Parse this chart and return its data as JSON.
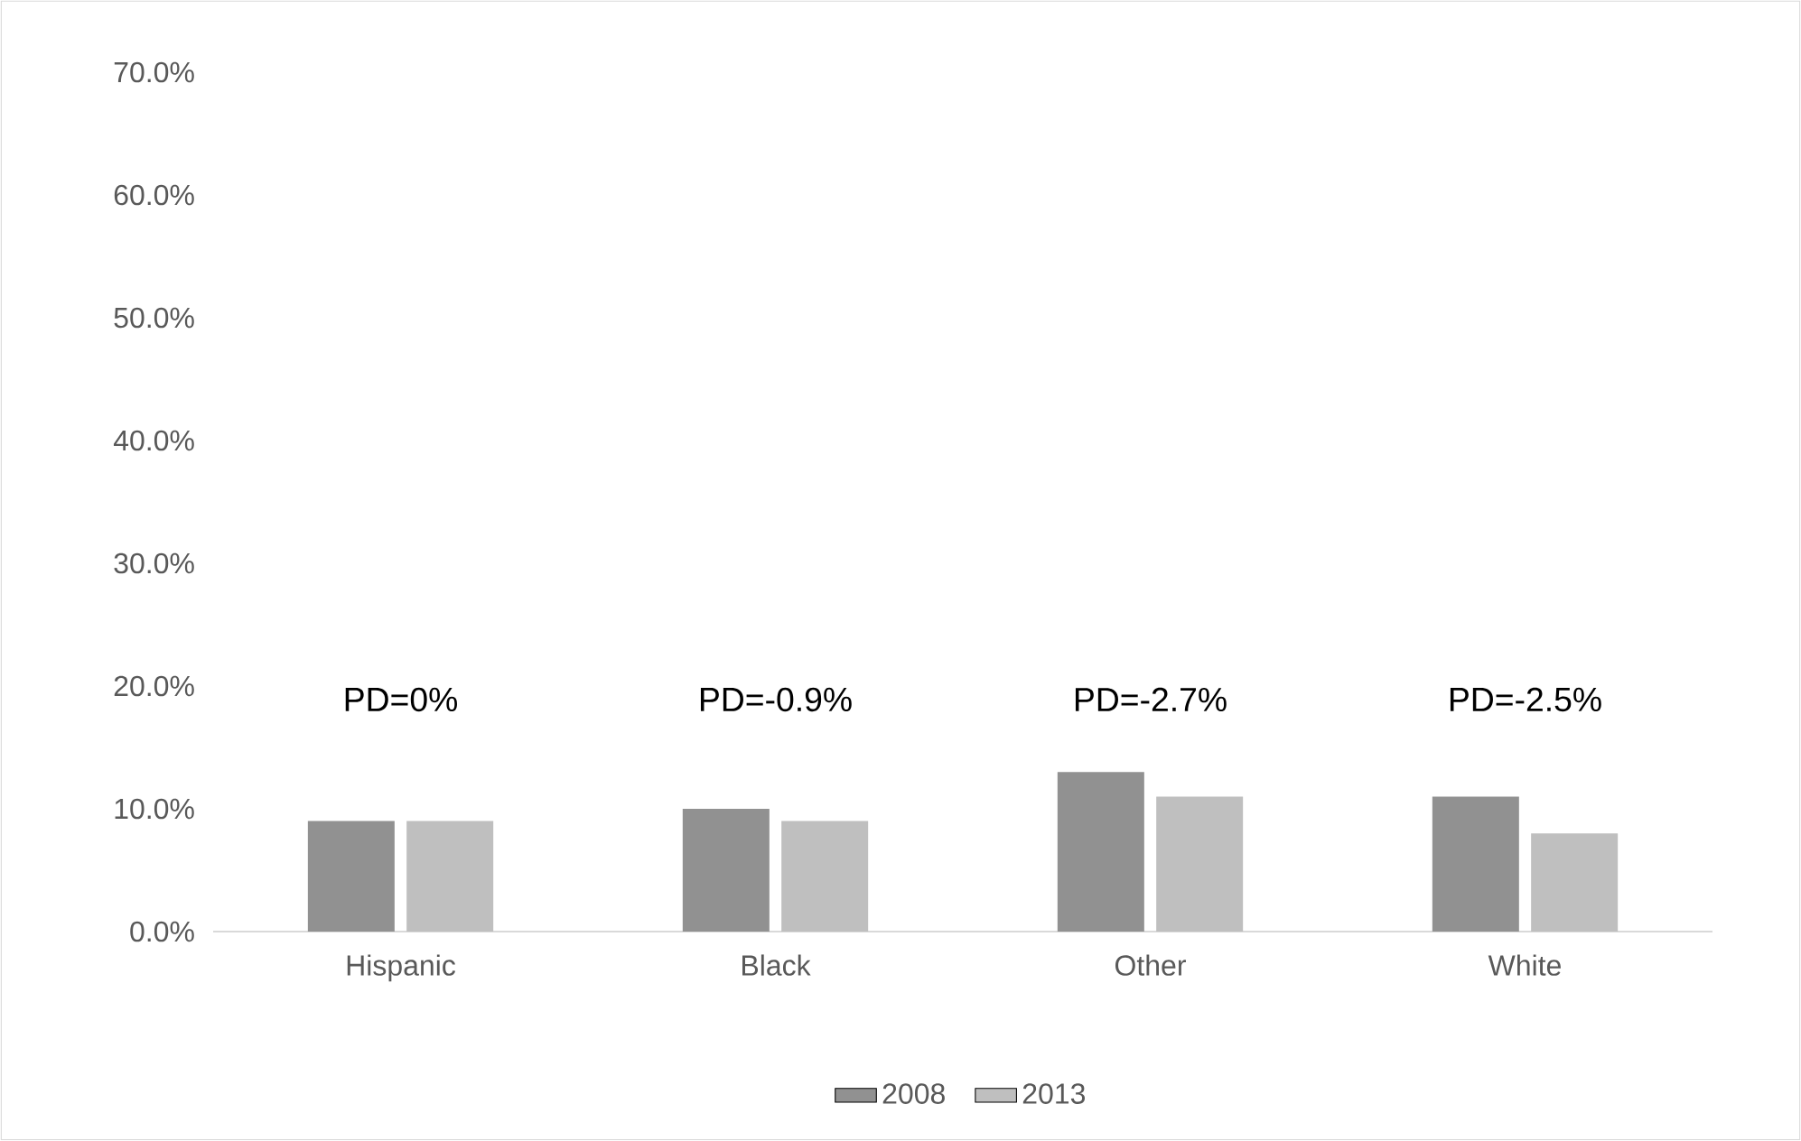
{
  "chart_data": {
    "type": "bar",
    "categories": [
      "Hispanic",
      "Black",
      "Other",
      "White"
    ],
    "series": [
      {
        "name": "2008",
        "color": "#919191",
        "values": [
          9,
          10,
          13,
          11
        ]
      },
      {
        "name": "2013",
        "color": "#bfbfbf",
        "values": [
          9,
          9,
          11,
          8
        ]
      }
    ],
    "ylim": [
      0,
      70
    ],
    "yticks": [
      {
        "value": 0,
        "label": "0.0%"
      },
      {
        "value": 10,
        "label": "10.0%"
      },
      {
        "value": 20,
        "label": "20.0%"
      },
      {
        "value": 30,
        "label": "30.0%"
      },
      {
        "value": 40,
        "label": "40.0%"
      },
      {
        "value": 50,
        "label": "50.0%"
      },
      {
        "value": 60,
        "label": "60.0%"
      },
      {
        "value": 70,
        "label": "70.0%"
      }
    ],
    "annotations": [
      "PD=0%",
      "PD=-0.9%",
      "PD=-2.7%",
      "PD=-2.5%"
    ],
    "grid": false,
    "legend": "bottom"
  }
}
